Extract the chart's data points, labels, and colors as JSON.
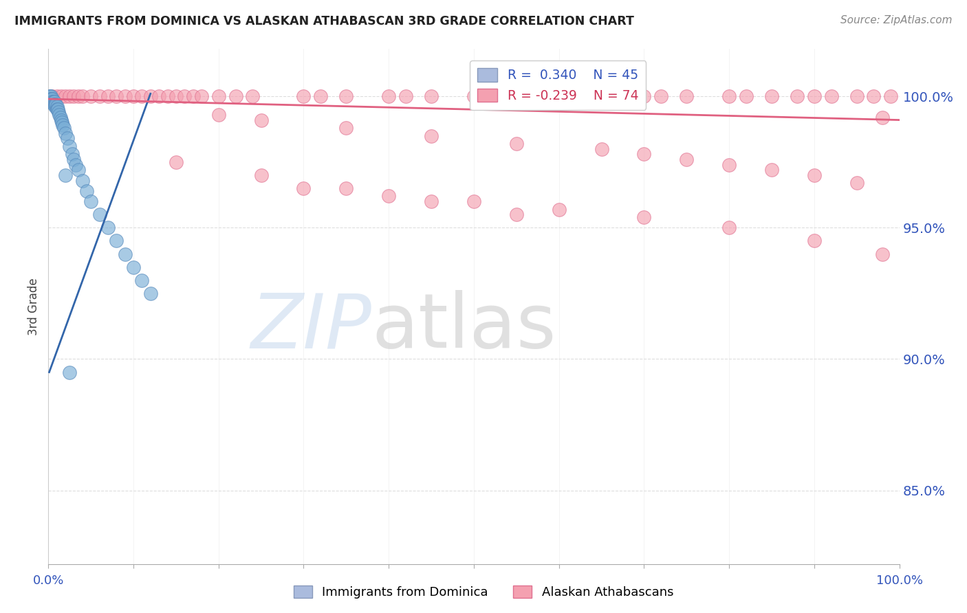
{
  "title": "IMMIGRANTS FROM DOMINICA VS ALASKAN ATHABASCAN 3RD GRADE CORRELATION CHART",
  "source": "Source: ZipAtlas.com",
  "ylabel": "3rd Grade",
  "ytick_labels": [
    "100.0%",
    "95.0%",
    "90.0%",
    "85.0%"
  ],
  "ytick_values": [
    1.0,
    0.95,
    0.9,
    0.85
  ],
  "xmin": 0.0,
  "xmax": 1.0,
  "ymin": 0.822,
  "ymax": 1.018,
  "blue_R": 0.34,
  "blue_N": 45,
  "pink_R": -0.239,
  "pink_N": 74,
  "legend_label_blue": "Immigrants from Dominica",
  "legend_label_pink": "Alaskan Athabascans",
  "blue_color": "#7aaed6",
  "pink_color": "#f4a0b0",
  "blue_edge_color": "#5588bb",
  "pink_edge_color": "#e07090",
  "blue_line_color": "#3366aa",
  "pink_line_color": "#e06080",
  "axis_label_color": "#3355BB",
  "title_color": "#222222",
  "source_color": "#888888",
  "grid_color": "#dddddd",
  "blue_x": [
    0.001,
    0.002,
    0.002,
    0.003,
    0.003,
    0.004,
    0.004,
    0.005,
    0.005,
    0.006,
    0.006,
    0.007,
    0.007,
    0.008,
    0.008,
    0.009,
    0.01,
    0.01,
    0.011,
    0.012,
    0.013,
    0.014,
    0.015,
    0.016,
    0.017,
    0.018,
    0.02,
    0.022,
    0.025,
    0.028,
    0.03,
    0.032,
    0.035,
    0.04,
    0.045,
    0.05,
    0.06,
    0.07,
    0.08,
    0.09,
    0.1,
    0.11,
    0.12,
    0.02,
    0.025
  ],
  "blue_y": [
    1.0,
    1.0,
    0.999,
    1.0,
    0.999,
    0.999,
    0.998,
    0.999,
    0.998,
    0.998,
    0.997,
    0.998,
    0.997,
    0.997,
    0.996,
    0.997,
    0.996,
    0.995,
    0.995,
    0.994,
    0.993,
    0.992,
    0.991,
    0.99,
    0.989,
    0.988,
    0.986,
    0.984,
    0.981,
    0.978,
    0.976,
    0.974,
    0.972,
    0.968,
    0.964,
    0.96,
    0.955,
    0.95,
    0.945,
    0.94,
    0.935,
    0.93,
    0.925,
    0.97,
    0.895
  ],
  "pink_x": [
    0.005,
    0.01,
    0.015,
    0.02,
    0.025,
    0.03,
    0.035,
    0.04,
    0.05,
    0.06,
    0.07,
    0.08,
    0.09,
    0.1,
    0.11,
    0.12,
    0.13,
    0.14,
    0.15,
    0.16,
    0.17,
    0.18,
    0.2,
    0.22,
    0.24,
    0.3,
    0.32,
    0.35,
    0.4,
    0.42,
    0.45,
    0.5,
    0.55,
    0.6,
    0.62,
    0.65,
    0.7,
    0.72,
    0.75,
    0.8,
    0.82,
    0.85,
    0.88,
    0.9,
    0.92,
    0.95,
    0.97,
    0.99,
    0.2,
    0.25,
    0.35,
    0.45,
    0.55,
    0.65,
    0.7,
    0.75,
    0.8,
    0.85,
    0.9,
    0.95,
    0.3,
    0.4,
    0.5,
    0.6,
    0.7,
    0.8,
    0.9,
    0.98,
    0.15,
    0.25,
    0.35,
    0.45,
    0.55,
    0.98
  ],
  "pink_y": [
    1.0,
    1.0,
    1.0,
    1.0,
    1.0,
    1.0,
    1.0,
    1.0,
    1.0,
    1.0,
    1.0,
    1.0,
    1.0,
    1.0,
    1.0,
    1.0,
    1.0,
    1.0,
    1.0,
    1.0,
    1.0,
    1.0,
    1.0,
    1.0,
    1.0,
    1.0,
    1.0,
    1.0,
    1.0,
    1.0,
    1.0,
    1.0,
    1.0,
    1.0,
    1.0,
    1.0,
    1.0,
    1.0,
    1.0,
    1.0,
    1.0,
    1.0,
    1.0,
    1.0,
    1.0,
    1.0,
    1.0,
    1.0,
    0.993,
    0.991,
    0.988,
    0.985,
    0.982,
    0.98,
    0.978,
    0.976,
    0.974,
    0.972,
    0.97,
    0.967,
    0.965,
    0.962,
    0.96,
    0.957,
    0.954,
    0.95,
    0.945,
    0.94,
    0.975,
    0.97,
    0.965,
    0.96,
    0.955,
    0.992
  ],
  "blue_line_x0": 0.001,
  "blue_line_x1": 0.12,
  "blue_line_y0": 0.895,
  "blue_line_y1": 1.001,
  "pink_line_x0": 0.0,
  "pink_line_x1": 1.0,
  "pink_line_y0": 0.999,
  "pink_line_y1": 0.991
}
